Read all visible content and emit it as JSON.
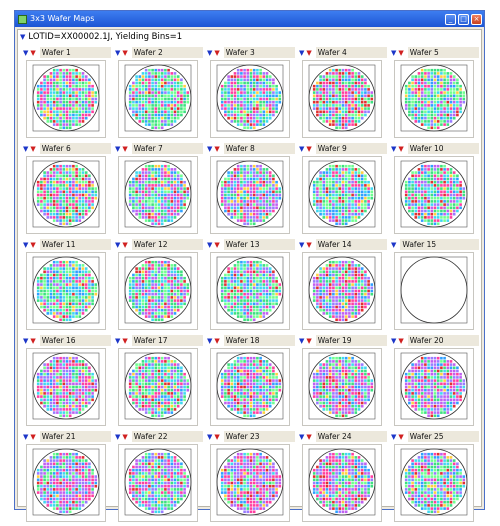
{
  "window": {
    "title": "3x3 Wafer Maps",
    "buttons": [
      "minimize",
      "maximize",
      "close"
    ]
  },
  "lot": {
    "label": "LOTID=XX00002.1J, Yielding Bins=1"
  },
  "colors": {
    "bins": [
      "#ff3fa0",
      "#3de080",
      "#9a7cff",
      "#40d8f0",
      "#ffd040",
      "#e03030",
      "#70ff90",
      "#c060f0",
      "#30a0ff"
    ]
  },
  "wafers": [
    {
      "label": "Wafer 1",
      "tested": true,
      "mix": [
        3,
        4,
        2,
        3,
        1,
        1,
        3,
        2,
        2
      ]
    },
    {
      "label": "Wafer 2",
      "tested": true,
      "mix": [
        2,
        5,
        2,
        4,
        1,
        1,
        4,
        1,
        2
      ]
    },
    {
      "label": "Wafer 3",
      "tested": true,
      "mix": [
        3,
        4,
        3,
        3,
        1,
        1,
        3,
        2,
        2
      ]
    },
    {
      "label": "Wafer 4",
      "tested": true,
      "mix": [
        3,
        4,
        2,
        2,
        1,
        3,
        3,
        2,
        2
      ]
    },
    {
      "label": "Wafer 5",
      "tested": true,
      "mix": [
        2,
        5,
        2,
        3,
        1,
        1,
        4,
        1,
        2
      ]
    },
    {
      "label": "Wafer 6",
      "tested": true,
      "mix": [
        3,
        4,
        2,
        3,
        1,
        2,
        3,
        2,
        2
      ]
    },
    {
      "label": "Wafer 7",
      "tested": true,
      "mix": [
        3,
        4,
        3,
        3,
        1,
        1,
        3,
        3,
        2
      ]
    },
    {
      "label": "Wafer 8",
      "tested": true,
      "mix": [
        4,
        3,
        4,
        2,
        1,
        1,
        2,
        4,
        2
      ]
    },
    {
      "label": "Wafer 9",
      "tested": true,
      "mix": [
        2,
        5,
        2,
        4,
        1,
        1,
        4,
        1,
        2
      ]
    },
    {
      "label": "Wafer 10",
      "tested": true,
      "mix": [
        3,
        4,
        2,
        3,
        1,
        2,
        3,
        2,
        2
      ]
    },
    {
      "label": "Wafer 11",
      "tested": true,
      "mix": [
        2,
        5,
        2,
        4,
        1,
        1,
        4,
        1,
        3
      ]
    },
    {
      "label": "Wafer 12",
      "tested": true,
      "mix": [
        3,
        4,
        3,
        3,
        1,
        1,
        3,
        2,
        2
      ]
    },
    {
      "label": "Wafer 13",
      "tested": true,
      "mix": [
        2,
        5,
        2,
        4,
        1,
        1,
        4,
        1,
        2
      ]
    },
    {
      "label": "Wafer 14",
      "tested": true,
      "mix": [
        4,
        3,
        4,
        2,
        1,
        2,
        2,
        4,
        2
      ]
    },
    {
      "label": "Wafer 15",
      "tested": false,
      "mix": [
        0,
        0,
        0,
        0,
        0,
        0,
        0,
        0,
        0
      ]
    },
    {
      "label": "Wafer 16",
      "tested": true,
      "mix": [
        4,
        3,
        4,
        2,
        1,
        1,
        2,
        4,
        2
      ]
    },
    {
      "label": "Wafer 17",
      "tested": true,
      "mix": [
        3,
        4,
        3,
        3,
        1,
        1,
        3,
        2,
        2
      ]
    },
    {
      "label": "Wafer 18",
      "tested": true,
      "mix": [
        3,
        4,
        3,
        3,
        1,
        1,
        3,
        3,
        2
      ]
    },
    {
      "label": "Wafer 19",
      "tested": true,
      "mix": [
        4,
        3,
        4,
        2,
        1,
        1,
        2,
        4,
        2
      ]
    },
    {
      "label": "Wafer 20",
      "tested": true,
      "mix": [
        4,
        3,
        4,
        2,
        1,
        1,
        2,
        5,
        2
      ]
    },
    {
      "label": "Wafer 21",
      "tested": true,
      "mix": [
        4,
        3,
        4,
        2,
        1,
        1,
        2,
        4,
        2
      ]
    },
    {
      "label": "Wafer 22",
      "tested": true,
      "mix": [
        3,
        4,
        3,
        3,
        1,
        1,
        3,
        3,
        2
      ]
    },
    {
      "label": "Wafer 23",
      "tested": true,
      "mix": [
        5,
        2,
        5,
        2,
        1,
        2,
        2,
        5,
        2
      ]
    },
    {
      "label": "Wafer 24",
      "tested": true,
      "mix": [
        4,
        3,
        4,
        2,
        1,
        1,
        2,
        4,
        2
      ]
    },
    {
      "label": "Wafer 25",
      "tested": true,
      "mix": [
        3,
        4,
        3,
        3,
        1,
        1,
        3,
        2,
        2
      ]
    }
  ]
}
